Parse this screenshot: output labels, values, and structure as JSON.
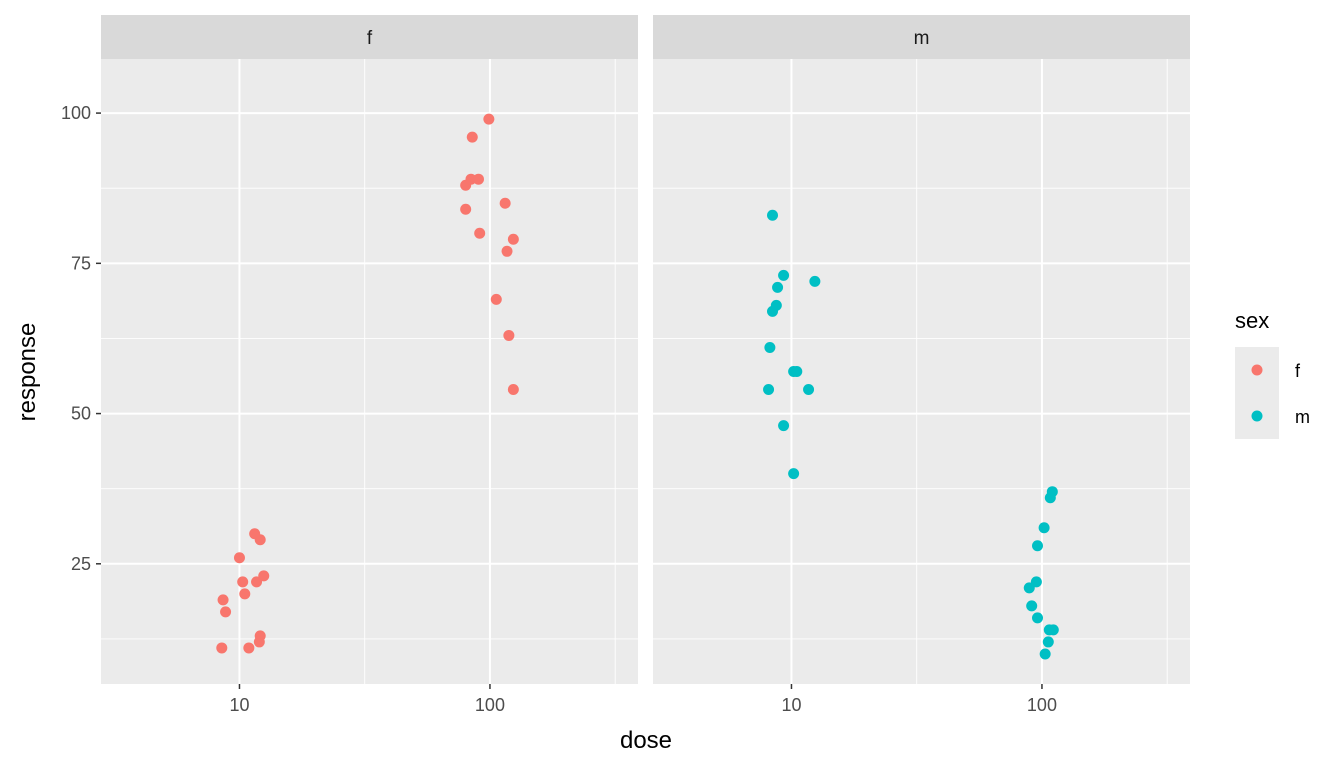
{
  "chart_data": {
    "type": "scatter",
    "xlabel": "dose",
    "ylabel": "response",
    "x_scale": "log10",
    "x_ticks": [
      10,
      100
    ],
    "y_ticks": [
      25,
      50,
      75,
      100
    ],
    "xlim": [
      2.8,
      390
    ],
    "ylim": [
      5,
      109
    ],
    "grid": true,
    "legend_position": "right",
    "legend_title": "sex",
    "colors": {
      "f": "#F8766D",
      "m": "#00BFC4"
    },
    "facets": [
      {
        "label": "f",
        "series": [
          {
            "name": "f",
            "points": [
              {
                "x": 8.5,
                "y": 11
              },
              {
                "x": 10.9,
                "y": 11
              },
              {
                "x": 12.0,
                "y": 12
              },
              {
                "x": 12.1,
                "y": 13
              },
              {
                "x": 8.8,
                "y": 17
              },
              {
                "x": 8.6,
                "y": 19
              },
              {
                "x": 10.5,
                "y": 20
              },
              {
                "x": 10.3,
                "y": 22
              },
              {
                "x": 11.7,
                "y": 22
              },
              {
                "x": 12.5,
                "y": 23
              },
              {
                "x": 10.0,
                "y": 26
              },
              {
                "x": 12.1,
                "y": 29
              },
              {
                "x": 11.5,
                "y": 30
              },
              {
                "x": 124,
                "y": 54
              },
              {
                "x": 119,
                "y": 63
              },
              {
                "x": 106,
                "y": 69
              },
              {
                "x": 117,
                "y": 77
              },
              {
                "x": 124,
                "y": 79
              },
              {
                "x": 91,
                "y": 80
              },
              {
                "x": 80,
                "y": 84
              },
              {
                "x": 115,
                "y": 85
              },
              {
                "x": 80,
                "y": 88
              },
              {
                "x": 84,
                "y": 89
              },
              {
                "x": 90,
                "y": 89
              },
              {
                "x": 85,
                "y": 96
              },
              {
                "x": 99,
                "y": 99
              }
            ]
          }
        ]
      },
      {
        "label": "m",
        "series": [
          {
            "name": "m",
            "points": [
              {
                "x": 10.2,
                "y": 40
              },
              {
                "x": 9.3,
                "y": 48
              },
              {
                "x": 8.1,
                "y": 54
              },
              {
                "x": 11.7,
                "y": 54
              },
              {
                "x": 10.2,
                "y": 57
              },
              {
                "x": 10.5,
                "y": 57
              },
              {
                "x": 8.2,
                "y": 61
              },
              {
                "x": 8.4,
                "y": 67
              },
              {
                "x": 8.7,
                "y": 68
              },
              {
                "x": 8.8,
                "y": 71
              },
              {
                "x": 12.4,
                "y": 72
              },
              {
                "x": 9.3,
                "y": 73
              },
              {
                "x": 8.4,
                "y": 83
              },
              {
                "x": 103,
                "y": 10
              },
              {
                "x": 106,
                "y": 12
              },
              {
                "x": 107,
                "y": 14
              },
              {
                "x": 111,
                "y": 14
              },
              {
                "x": 96,
                "y": 16
              },
              {
                "x": 91,
                "y": 18
              },
              {
                "x": 89,
                "y": 21
              },
              {
                "x": 95,
                "y": 22
              },
              {
                "x": 96,
                "y": 28
              },
              {
                "x": 102,
                "y": 31
              },
              {
                "x": 108,
                "y": 36
              },
              {
                "x": 110,
                "y": 37
              }
            ]
          }
        ]
      }
    ],
    "legend": [
      {
        "label": "f",
        "color": "#F8766D"
      },
      {
        "label": "m",
        "color": "#00BFC4"
      }
    ]
  }
}
